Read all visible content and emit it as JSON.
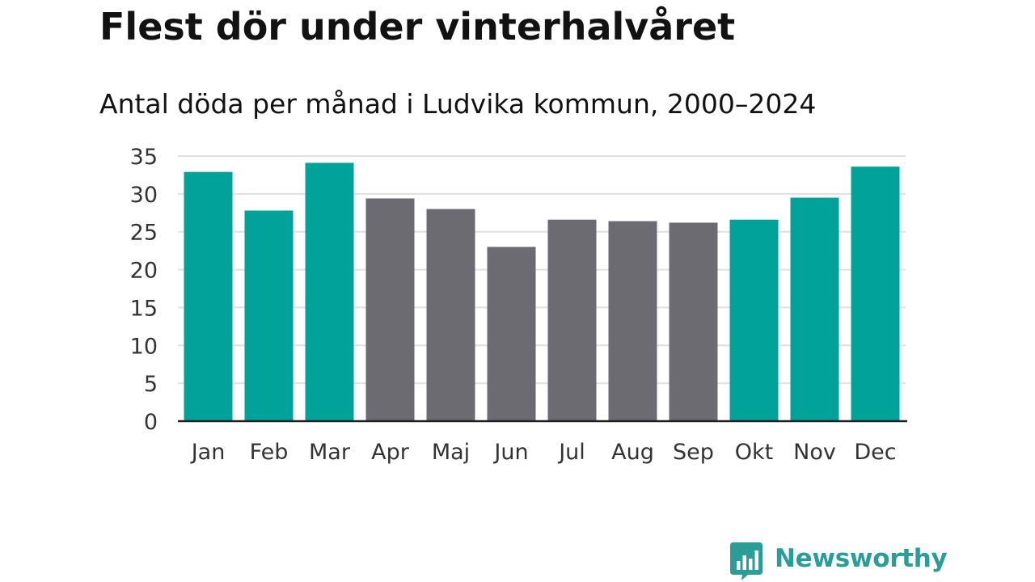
{
  "header": {
    "title": "Flest dör under vinterhalvåret",
    "subtitle": "Antal döda per månad i Ludvika kommun, 2000–2024"
  },
  "colors": {
    "winter": "#00a29a",
    "summer": "#6c6b72",
    "grid": "#e0e0e0",
    "axis": "#222222",
    "logo": "#2a9d96"
  },
  "chart_data": {
    "type": "bar",
    "title": "Flest dör under vinterhalvåret",
    "subtitle": "Antal döda per månad i Ludvika kommun, 2000–2024",
    "xlabel": "",
    "ylabel": "",
    "ylim": [
      0,
      35
    ],
    "yticks": [
      0,
      5,
      10,
      15,
      20,
      25,
      30,
      35
    ],
    "grid": true,
    "categories": [
      "Jan",
      "Feb",
      "Mar",
      "Apr",
      "Maj",
      "Jun",
      "Jul",
      "Aug",
      "Sep",
      "Okt",
      "Nov",
      "Dec"
    ],
    "values": [
      32.9,
      27.8,
      34.1,
      29.4,
      28.0,
      23.0,
      26.6,
      26.4,
      26.2,
      26.6,
      29.5,
      33.6
    ],
    "season": [
      "winter",
      "winter",
      "winter",
      "summer",
      "summer",
      "summer",
      "summer",
      "summer",
      "summer",
      "winter",
      "winter",
      "winter"
    ]
  },
  "logo": {
    "icon": "newsworthy-chart-bubble-icon",
    "text": "Newsworthy"
  }
}
